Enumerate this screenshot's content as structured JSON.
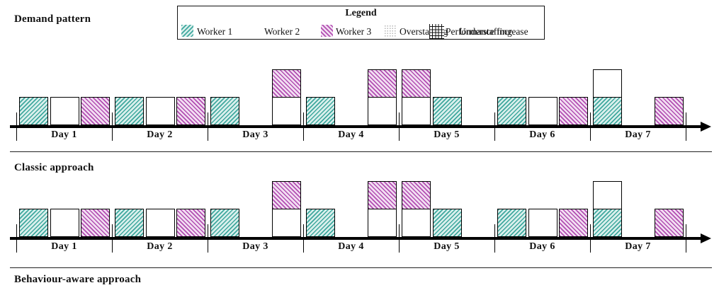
{
  "sections": [
    {
      "title": "Demand pattern"
    },
    {
      "title": "Classic approach"
    },
    {
      "title": "Behaviour-aware approach"
    }
  ],
  "legend": {
    "title": "Legend",
    "entries": [
      {
        "label": "Worker 1",
        "swatch": "worker1-hatch",
        "color": "#3fa89e"
      },
      {
        "label": "Worker 2",
        "swatch": "white",
        "color": "#ffffff"
      },
      {
        "label": "Worker 3",
        "swatch": "worker3-hatch",
        "color": "#b24eb2"
      },
      {
        "label": "Overstaffing",
        "swatch": "gray-dots",
        "color": "#b7b7b7"
      },
      {
        "label": "Performance increase",
        "swatch": "black-grid",
        "color": "#111111"
      },
      {
        "label": "Understaffing",
        "swatch": "none",
        "color": "#111111"
      }
    ]
  },
  "chart_data": {
    "type": "bar",
    "subtype": "stacked-schedule-timeline",
    "days": [
      "Day 1",
      "Day 2",
      "Day 3",
      "Day 4",
      "Day 5",
      "Day 6",
      "Day 7"
    ],
    "slots_per_day": 3,
    "unit_height": 1,
    "workers": [
      "worker1",
      "worker2",
      "worker3"
    ],
    "charts": [
      {
        "section": "Demand pattern",
        "bars": [
          {
            "day": 1,
            "slot": 1,
            "segments": [
              "worker1"
            ]
          },
          {
            "day": 1,
            "slot": 2,
            "segments": [
              "worker2"
            ]
          },
          {
            "day": 1,
            "slot": 3,
            "segments": [
              "worker3"
            ]
          },
          {
            "day": 2,
            "slot": 1,
            "segments": [
              "worker1"
            ]
          },
          {
            "day": 2,
            "slot": 2,
            "segments": [
              "worker2"
            ]
          },
          {
            "day": 2,
            "slot": 3,
            "segments": [
              "worker3"
            ]
          },
          {
            "day": 3,
            "slot": 1,
            "segments": [
              "worker1"
            ]
          },
          {
            "day": 3,
            "slot": 3,
            "segments": [
              "worker2",
              "worker3"
            ]
          },
          {
            "day": 4,
            "slot": 1,
            "segments": [
              "worker1"
            ]
          },
          {
            "day": 4,
            "slot": 3,
            "segments": [
              "worker2",
              "worker3"
            ]
          },
          {
            "day": 5,
            "slot": 1,
            "segments": [
              "worker2",
              "worker3"
            ]
          },
          {
            "day": 5,
            "slot": 2,
            "segments": [
              "worker1"
            ]
          },
          {
            "day": 6,
            "slot": 1,
            "segments": [
              "worker1"
            ]
          },
          {
            "day": 6,
            "slot": 2,
            "segments": [
              "worker2"
            ]
          },
          {
            "day": 6,
            "slot": 3,
            "segments": [
              "worker3"
            ]
          },
          {
            "day": 7,
            "slot": 1,
            "segments": [
              "worker1",
              "worker2"
            ]
          },
          {
            "day": 7,
            "slot": 3,
            "segments": [
              "worker3"
            ]
          }
        ]
      },
      {
        "section": "Classic approach",
        "bars": [
          {
            "day": 1,
            "slot": 1,
            "segments": [
              "worker1"
            ]
          },
          {
            "day": 1,
            "slot": 2,
            "segments": [
              "worker2"
            ]
          },
          {
            "day": 1,
            "slot": 3,
            "segments": [
              "worker3"
            ]
          },
          {
            "day": 2,
            "slot": 1,
            "segments": [
              "worker1"
            ]
          },
          {
            "day": 2,
            "slot": 2,
            "segments": [
              "worker2"
            ]
          },
          {
            "day": 2,
            "slot": 3,
            "segments": [
              "worker3"
            ]
          },
          {
            "day": 3,
            "slot": 1,
            "segments": [
              "worker1"
            ]
          },
          {
            "day": 3,
            "slot": 3,
            "segments": [
              "worker2",
              "worker3"
            ]
          },
          {
            "day": 4,
            "slot": 1,
            "segments": [
              "worker1"
            ]
          },
          {
            "day": 4,
            "slot": 3,
            "segments": [
              "worker2",
              "worker3"
            ]
          },
          {
            "day": 5,
            "slot": 1,
            "segments": [
              "worker2",
              "worker3"
            ]
          },
          {
            "day": 5,
            "slot": 2,
            "segments": [
              "worker1"
            ]
          },
          {
            "day": 6,
            "slot": 1,
            "segments": [
              "worker1"
            ]
          },
          {
            "day": 6,
            "slot": 2,
            "segments": [
              "worker2"
            ]
          },
          {
            "day": 6,
            "slot": 3,
            "segments": [
              "worker3"
            ]
          },
          {
            "day": 7,
            "slot": 1,
            "segments": [
              "worker1",
              "worker2"
            ]
          },
          {
            "day": 7,
            "slot": 3,
            "segments": [
              "worker3"
            ]
          }
        ]
      }
    ]
  }
}
